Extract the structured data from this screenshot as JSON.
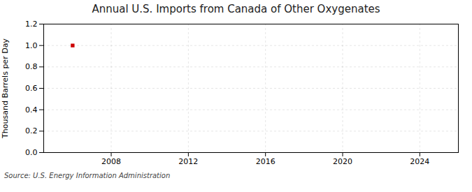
{
  "chart_data": {
    "type": "scatter",
    "title": "Annual U.S. Imports from Canada of Other Oxygenates",
    "y_label": "Thousand Barrels per Day",
    "source": "Source: U.S. Energy Information Administration",
    "x": [
      2006
    ],
    "values": [
      1.0
    ],
    "color": "#cc0000",
    "marker": "square",
    "xlim": [
      2004.5,
      2026
    ],
    "ylim": [
      0.0,
      1.2
    ],
    "xticks": [
      2008,
      2012,
      2016,
      2020,
      2024
    ],
    "yticks": [
      {
        "value": 0.0,
        "label": "0.0"
      },
      0.2,
      0.4,
      0.6,
      0.8,
      {
        "value": 1.0,
        "label": "1.0"
      },
      1.2
    ],
    "grid": true
  }
}
